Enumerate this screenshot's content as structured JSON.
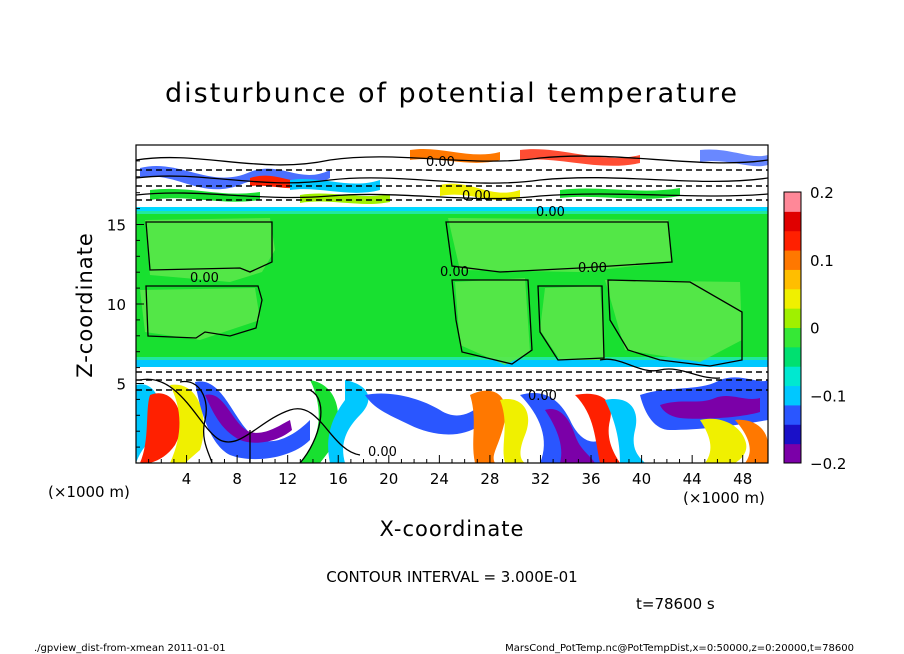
{
  "chart_data": {
    "type": "heatmap",
    "title": "disturbunce of potential temperature",
    "xlabel": "X-coordinate",
    "ylabel": "Z-coordinate",
    "x_unit": "(×1000 m)",
    "y_unit": "(×1000 m)",
    "xlim": [
      0,
      50
    ],
    "ylim": [
      0,
      20
    ],
    "x_ticks": [
      "4",
      "8",
      "12",
      "16",
      "20",
      "24",
      "28",
      "32",
      "36",
      "40",
      "44",
      "48"
    ],
    "y_ticks": [
      "5",
      "10",
      "15"
    ],
    "colorbar": {
      "ticks": [
        "0.2",
        "0.1",
        "0",
        "−0.1",
        "−0.2"
      ],
      "min": -0.2,
      "max": 0.2,
      "colors": [
        "#7b00a8",
        "#1a10c8",
        "#2a56ff",
        "#00c8ff",
        "#00e8d0",
        "#00e070",
        "#36e836",
        "#a0f000",
        "#f0f000",
        "#ffbe00",
        "#ff7800",
        "#ff2000",
        "#e00000",
        "#ff8898"
      ]
    },
    "contour_interval": "CONTOUR INTERVAL = 3.000E-01",
    "contour_label": "0.00",
    "time_label": "t=78600 s",
    "footer_left": "./gpview_dist-from-xmean   2011-01-01",
    "footer_right": "MarsCond_PotTemp.nc@PotTempDist,x=0:50000,z=0:20000,t=78600"
  }
}
